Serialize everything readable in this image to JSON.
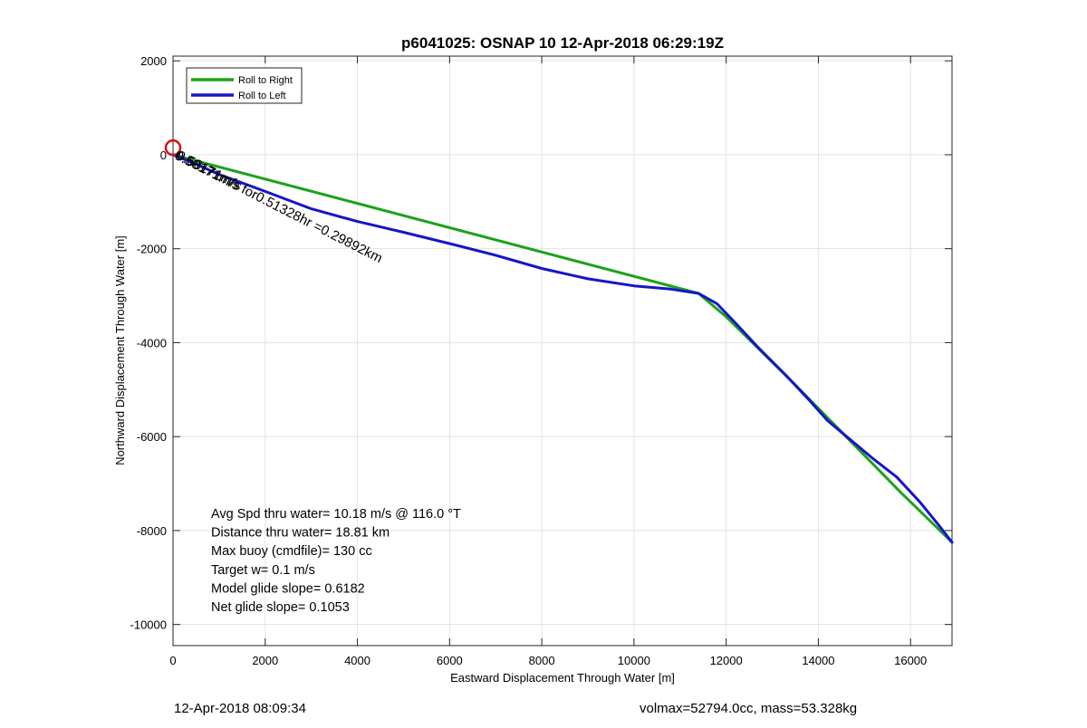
{
  "footer": {
    "timestamp": "12-Apr-2018 08:09:34",
    "vol_mass": "volmax=52794.0cc, mass=53.328kg"
  },
  "colors": {
    "green": "#1aa31a",
    "blue": "#1515c8",
    "marker": "#d41414"
  },
  "chart_data": {
    "type": "line",
    "title": "p6041025: OSNAP 10 12-Apr-2018 06:29:19Z",
    "xlabel": "Eastward Displacement Through Water [m]",
    "ylabel": "Northward Displacement Through Water [m]",
    "xlim": [
      0,
      16900
    ],
    "ylim": [
      -10450,
      2100
    ],
    "xticks": [
      0,
      2000,
      4000,
      6000,
      8000,
      10000,
      12000,
      14000,
      16000
    ],
    "yticks": [
      2000,
      0,
      -2000,
      -4000,
      -6000,
      -8000,
      -10000
    ],
    "grid": true,
    "legend_position": "top-left",
    "series": [
      {
        "name": "Roll to Right",
        "color": "#1aa31a",
        "x": [
          0,
          11400,
          12000,
          13500,
          15800,
          16900
        ],
        "y": [
          0,
          -2950,
          -3450,
          -4900,
          -7200,
          -8250
        ]
      },
      {
        "name": "Roll to Left",
        "color": "#1515c8",
        "x": [
          0,
          500,
          1000,
          2000,
          3000,
          4000,
          5000,
          6000,
          7000,
          8000,
          9000,
          10000,
          10800,
          11400,
          11800,
          12200,
          12700,
          13300,
          13800,
          14200,
          14700,
          15200,
          15700,
          16200,
          16600,
          16900
        ],
        "y": [
          0,
          -200,
          -420,
          -780,
          -1150,
          -1420,
          -1650,
          -1890,
          -2140,
          -2420,
          -2640,
          -2790,
          -2860,
          -2950,
          -3170,
          -3580,
          -4110,
          -4700,
          -5220,
          -5660,
          -6070,
          -6480,
          -6860,
          -7390,
          -7870,
          -8250
        ]
      }
    ],
    "marker": {
      "x": 0,
      "y": 150
    },
    "annotation_overlap": "0.58171m/s",
    "annotation_main": "0.58171m/s for0.51328hr =0.29892km",
    "info_lines": [
      "Avg Spd thru water= 10.18 m/s @ 116.0 °T",
      "Distance thru water= 18.81 km",
      "Max buoy (cmdfile)= 130 cc",
      "Target w= 0.1 m/s",
      "Model glide slope= 0.6182",
      "Net glide slope= 0.1053"
    ]
  }
}
